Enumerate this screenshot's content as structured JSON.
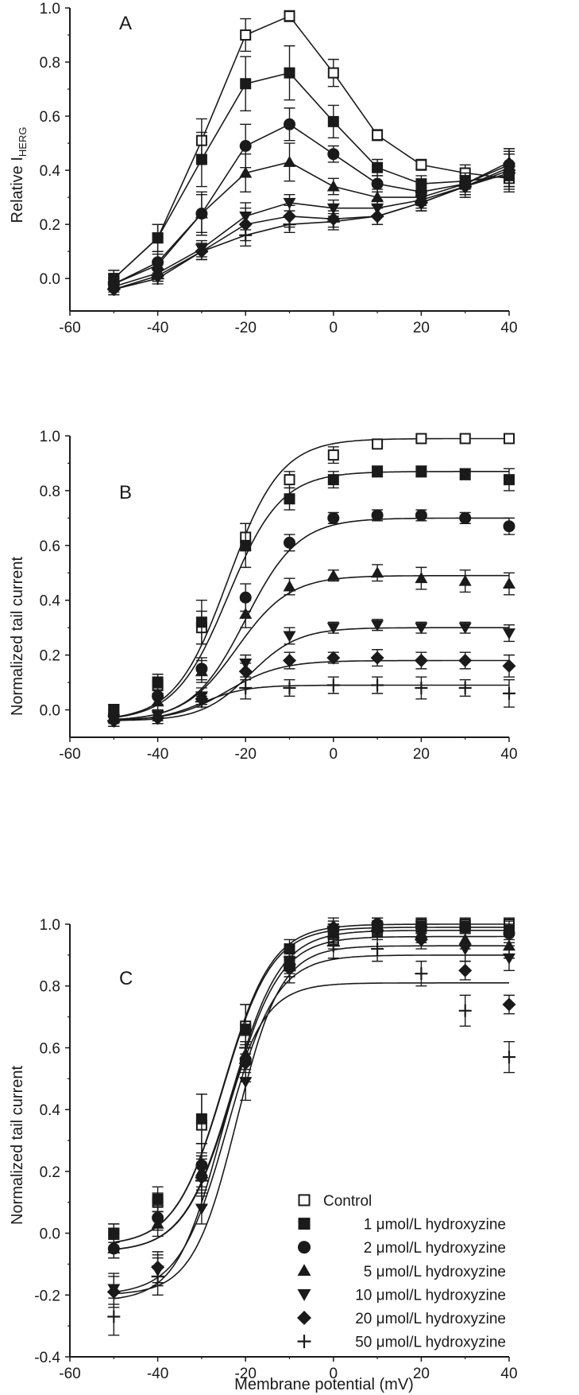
{
  "figure_xlabel": "Membrane potential (mV)",
  "legend": [
    {
      "label": "Control",
      "marker": "square-open"
    },
    {
      "label": "1 μmol/L hydroxyzine",
      "marker": "square"
    },
    {
      "label": "2 μmol/L hydroxyzine",
      "marker": "circle"
    },
    {
      "label": "5 μmol/L hydroxyzine",
      "marker": "triangle-up"
    },
    {
      "label": "10 μmol/L hydroxyzine",
      "marker": "triangle-down"
    },
    {
      "label": "20 μmol/L hydroxyzine",
      "marker": "diamond"
    },
    {
      "label": "50 μmol/L hydroxyzine",
      "marker": "plus"
    }
  ],
  "chart_data": [
    {
      "panel": "A",
      "type": "line",
      "ylabel": "Relative I",
      "ylabel_sub": "HERG",
      "xlim": [
        -60,
        40
      ],
      "ylim": [
        -0.12,
        1.0
      ],
      "xticks": [
        "-60",
        "-40",
        "-20",
        "0",
        "20",
        "40"
      ],
      "yticks": [
        "0.0",
        "0.2",
        "0.4",
        "0.6",
        "0.8",
        "1.0"
      ],
      "x": [
        -50,
        -40,
        -30,
        -20,
        -10,
        0,
        10,
        20,
        30,
        40
      ],
      "fit_curves": false,
      "series": [
        {
          "name": "Control",
          "values": [
            0.0,
            0.15,
            0.51,
            0.9,
            0.97,
            0.76,
            0.53,
            0.42,
            0.39,
            0.37
          ],
          "err": [
            0.03,
            0.05,
            0.08,
            0.06,
            0.02,
            0.05,
            0.02,
            0.02,
            0.03,
            0.04
          ]
        },
        {
          "name": "1 μmol/L hydroxyzine",
          "values": [
            0.0,
            0.15,
            0.44,
            0.72,
            0.76,
            0.58,
            0.41,
            0.35,
            0.36,
            0.38
          ],
          "err": [
            0.03,
            0.05,
            0.1,
            0.1,
            0.1,
            0.06,
            0.03,
            0.03,
            0.03,
            0.04
          ]
        },
        {
          "name": "2 μmol/L hydroxyzine",
          "values": [
            -0.02,
            0.06,
            0.24,
            0.49,
            0.57,
            0.46,
            0.35,
            0.32,
            0.35,
            0.42
          ],
          "err": [
            0.02,
            0.04,
            0.08,
            0.08,
            0.06,
            0.03,
            0.03,
            0.03,
            0.03,
            0.05
          ]
        },
        {
          "name": "5 μmol/L hydroxyzine",
          "values": [
            -0.02,
            0.05,
            0.24,
            0.39,
            0.43,
            0.34,
            0.3,
            0.3,
            0.35,
            0.43
          ],
          "err": [
            0.02,
            0.04,
            0.07,
            0.07,
            0.07,
            0.03,
            0.03,
            0.03,
            0.03,
            0.05
          ]
        },
        {
          "name": "10 μmol/L hydroxyzine",
          "values": [
            -0.03,
            0.02,
            0.11,
            0.23,
            0.28,
            0.26,
            0.26,
            0.29,
            0.34,
            0.41
          ],
          "err": [
            0.02,
            0.03,
            0.03,
            0.05,
            0.03,
            0.03,
            0.03,
            0.03,
            0.03,
            0.07
          ]
        },
        {
          "name": "20 μmol/L hydroxyzine",
          "values": [
            -0.04,
            0.01,
            0.1,
            0.2,
            0.23,
            0.22,
            0.23,
            0.28,
            0.34,
            0.4
          ],
          "err": [
            0.02,
            0.02,
            0.03,
            0.06,
            0.04,
            0.03,
            0.03,
            0.03,
            0.03,
            0.06
          ]
        },
        {
          "name": "50 μmol/L hydroxyzine",
          "values": [
            -0.04,
            0.0,
            0.1,
            0.16,
            0.2,
            0.21,
            0.23,
            0.28,
            0.34,
            0.39
          ],
          "err": [
            0.02,
            0.02,
            0.03,
            0.04,
            0.03,
            0.03,
            0.03,
            0.03,
            0.04,
            0.07
          ]
        }
      ]
    },
    {
      "panel": "B",
      "type": "line",
      "ylabel": "Normalized tail current",
      "xlim": [
        -60,
        40
      ],
      "ylim": [
        -0.1,
        1.0
      ],
      "xticks": [
        "-60",
        "-40",
        "-20",
        "0",
        "20",
        "40"
      ],
      "yticks": [
        "0.0",
        "0.2",
        "0.4",
        "0.6",
        "0.8",
        "1.0"
      ],
      "x": [
        -50,
        -40,
        -30,
        -20,
        -10,
        0,
        10,
        20,
        30,
        40
      ],
      "fit_curves": true,
      "series": [
        {
          "name": "Control",
          "values": [
            0.0,
            0.09,
            0.3,
            0.63,
            0.84,
            0.93,
            0.97,
            0.99,
            0.99,
            0.99
          ],
          "err": [
            0.02,
            0.03,
            0.06,
            0.05,
            0.03,
            0.03,
            0.01,
            0.01,
            0.01,
            0.01
          ],
          "fit": {
            "min": -0.04,
            "max": 0.99,
            "v50": -24,
            "k": 6
          }
        },
        {
          "name": "1 μmol/L hydroxyzine",
          "values": [
            0.0,
            0.1,
            0.32,
            0.6,
            0.77,
            0.84,
            0.87,
            0.87,
            0.86,
            0.84
          ],
          "err": [
            0.02,
            0.03,
            0.08,
            0.08,
            0.04,
            0.03,
            0.02,
            0.02,
            0.02,
            0.04
          ],
          "fit": {
            "min": -0.04,
            "max": 0.87,
            "v50": -24,
            "k": 6
          }
        },
        {
          "name": "2 μmol/L hydroxyzine",
          "values": [
            -0.02,
            0.05,
            0.15,
            0.41,
            0.61,
            0.7,
            0.71,
            0.71,
            0.7,
            0.67
          ],
          "err": [
            0.02,
            0.03,
            0.04,
            0.05,
            0.03,
            0.02,
            0.02,
            0.02,
            0.02,
            0.03
          ],
          "fit": {
            "min": -0.04,
            "max": 0.7,
            "v50": -20,
            "k": 6
          }
        },
        {
          "name": "5 μmol/L hydroxyzine",
          "values": [
            -0.03,
            0.03,
            0.14,
            0.35,
            0.45,
            0.49,
            0.5,
            0.48,
            0.47,
            0.46
          ],
          "err": [
            0.02,
            0.03,
            0.04,
            0.05,
            0.03,
            0.02,
            0.03,
            0.04,
            0.04,
            0.04
          ],
          "fit": {
            "min": -0.04,
            "max": 0.49,
            "v50": -22,
            "k": 6
          }
        },
        {
          "name": "10 μmol/L hydroxyzine",
          "values": [
            -0.04,
            -0.02,
            0.05,
            0.17,
            0.27,
            0.3,
            0.31,
            0.3,
            0.3,
            0.28
          ],
          "err": [
            0.02,
            0.02,
            0.03,
            0.03,
            0.03,
            0.02,
            0.02,
            0.02,
            0.02,
            0.03
          ],
          "fit": {
            "min": -0.04,
            "max": 0.3,
            "v50": -19,
            "k": 5.5
          }
        },
        {
          "name": "20 μmol/L hydroxyzine",
          "values": [
            -0.04,
            -0.03,
            0.04,
            0.14,
            0.18,
            0.19,
            0.19,
            0.18,
            0.18,
            0.16
          ],
          "err": [
            0.02,
            0.02,
            0.02,
            0.03,
            0.03,
            0.02,
            0.03,
            0.03,
            0.03,
            0.04
          ],
          "fit": {
            "min": -0.04,
            "max": 0.18,
            "v50": -24,
            "k": 6
          }
        },
        {
          "name": "50 μmol/L hydroxyzine",
          "values": [
            -0.04,
            -0.03,
            0.03,
            0.08,
            0.08,
            0.09,
            0.09,
            0.08,
            0.08,
            0.06
          ],
          "err": [
            0.02,
            0.02,
            0.02,
            0.04,
            0.03,
            0.03,
            0.03,
            0.04,
            0.03,
            0.05
          ],
          "fit": {
            "min": -0.04,
            "max": 0.09,
            "v50": -30,
            "k": 5
          }
        }
      ]
    },
    {
      "panel": "C",
      "type": "line",
      "ylabel": "Normalized tail current",
      "xlabel": "Membrane potential (mV)",
      "xlim": [
        -60,
        40
      ],
      "ylim": [
        -0.4,
        1.0
      ],
      "xticks": [
        "-60",
        "-40",
        "-20",
        "0",
        "20",
        "40"
      ],
      "yticks": [
        "-0.4",
        "-0.2",
        "0.0",
        "0.2",
        "0.4",
        "0.6",
        "0.8",
        "1.0"
      ],
      "x": [
        -50,
        -40,
        -30,
        -20,
        -10,
        0,
        10,
        20,
        30,
        40
      ],
      "fit_curves": true,
      "legend_position": "bottom-right",
      "series": [
        {
          "name": "Control",
          "values": [
            0.0,
            0.1,
            0.35,
            0.67,
            0.88,
            0.95,
            0.98,
            1.0,
            1.0,
            1.0
          ],
          "err": [
            0.03,
            0.03,
            0.1,
            0.07,
            0.04,
            0.03,
            0.02,
            0.02,
            0.02,
            0.02
          ],
          "fit": {
            "min": -0.04,
            "max": 1.0,
            "v50": -25,
            "k": 5.5
          }
        },
        {
          "name": "1 μmol/L hydroxyzine",
          "values": [
            0.0,
            0.11,
            0.37,
            0.66,
            0.92,
            0.97,
            0.99,
            0.99,
            0.99,
            0.98
          ],
          "err": [
            0.03,
            0.04,
            0.08,
            0.08,
            0.03,
            0.03,
            0.02,
            0.02,
            0.02,
            0.03
          ],
          "fit": {
            "min": -0.04,
            "max": 0.99,
            "v50": -25,
            "k": 5.5
          }
        },
        {
          "name": "2 μmol/L hydroxyzine",
          "values": [
            -0.05,
            0.05,
            0.22,
            0.56,
            0.86,
            0.98,
            1.0,
            0.99,
            0.99,
            0.97
          ],
          "err": [
            0.03,
            0.04,
            0.07,
            0.06,
            0.03,
            0.02,
            0.02,
            0.02,
            0.02,
            0.03
          ],
          "fit": {
            "min": -0.06,
            "max": 0.98,
            "v50": -23,
            "k": 5.5
          }
        },
        {
          "name": "5 μmol/L hydroxyzine",
          "values": [
            -0.05,
            0.03,
            0.2,
            0.58,
            0.88,
            0.97,
            0.99,
            0.97,
            0.95,
            0.93
          ],
          "err": [
            0.03,
            0.04,
            0.06,
            0.06,
            0.03,
            0.03,
            0.03,
            0.03,
            0.03,
            0.04
          ],
          "fit": {
            "min": -0.06,
            "max": 0.96,
            "v50": -23,
            "k": 5.5
          }
        },
        {
          "name": "10 μmol/L hydroxyzine",
          "values": [
            -0.18,
            -0.12,
            0.08,
            0.49,
            0.88,
            0.98,
            0.99,
            0.98,
            0.92,
            0.89
          ],
          "err": [
            0.05,
            0.05,
            0.05,
            0.06,
            0.03,
            0.03,
            0.03,
            0.03,
            0.04,
            0.04
          ],
          "fit": {
            "min": -0.2,
            "max": 0.93,
            "v50": -22,
            "k": 5
          }
        },
        {
          "name": "20 μmol/L hydroxyzine",
          "values": [
            -0.19,
            -0.11,
            0.18,
            0.55,
            0.87,
            0.99,
            0.98,
            0.95,
            0.85,
            0.74
          ],
          "err": [
            0.05,
            0.05,
            0.06,
            0.06,
            0.04,
            0.03,
            0.03,
            0.03,
            0.03,
            0.03
          ],
          "fit": {
            "min": -0.2,
            "max": 0.9,
            "v50": -24,
            "k": 5.5
          }
        },
        {
          "name": "50 μmol/L hydroxyzine",
          "values": [
            -0.27,
            -0.14,
            0.17,
            0.6,
            0.85,
            0.93,
            0.92,
            0.84,
            0.72,
            0.57
          ],
          "err": [
            0.06,
            0.06,
            0.08,
            0.07,
            0.04,
            0.04,
            0.04,
            0.04,
            0.05,
            0.05
          ],
          "fit": {
            "min": -0.22,
            "max": 0.81,
            "v50": -26,
            "k": 5
          }
        }
      ]
    }
  ]
}
